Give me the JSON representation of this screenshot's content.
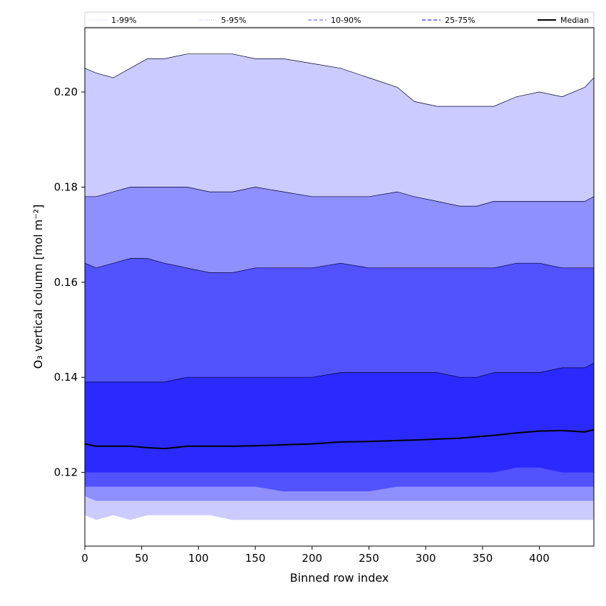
{
  "chart_data": {
    "type": "area",
    "xlabel": "Binned row index",
    "ylabel": "O₃ vertical column [mol m⁻²]",
    "xlim": [
      0,
      448
    ],
    "ylim": [
      0.1045,
      0.2135
    ],
    "x_ticks": [
      0,
      50,
      100,
      150,
      200,
      250,
      300,
      350,
      400
    ],
    "y_ticks": [
      0.12,
      0.14,
      0.16,
      0.18,
      0.2
    ],
    "x_tick_labels": [
      "0",
      "50",
      "100",
      "150",
      "200",
      "250",
      "300",
      "350",
      "400"
    ],
    "y_tick_labels": [
      "0.12",
      "0.14",
      "0.16",
      "0.18",
      "0.20"
    ],
    "grid": false,
    "legend_position": "top",
    "x": [
      0,
      10,
      25,
      40,
      55,
      70,
      90,
      110,
      130,
      150,
      175,
      200,
      225,
      250,
      275,
      290,
      310,
      330,
      345,
      360,
      380,
      400,
      420,
      440,
      448
    ],
    "bands": [
      {
        "name": "1-99%",
        "color": "#cbcbff",
        "lower": [
          0.111,
          0.11,
          0.111,
          0.11,
          0.111,
          0.111,
          0.111,
          0.111,
          0.11,
          0.11,
          0.11,
          0.11,
          0.11,
          0.11,
          0.11,
          0.11,
          0.11,
          0.11,
          0.11,
          0.11,
          0.11,
          0.11,
          0.11,
          0.11,
          0.11
        ],
        "upper": [
          0.205,
          0.204,
          0.203,
          0.205,
          0.207,
          0.207,
          0.208,
          0.208,
          0.208,
          0.207,
          0.207,
          0.206,
          0.205,
          0.203,
          0.201,
          0.198,
          0.197,
          0.197,
          0.197,
          0.197,
          0.199,
          0.2,
          0.199,
          0.201,
          0.203
        ]
      },
      {
        "name": "5-95%",
        "color": "#8f8fff",
        "lower": [
          0.115,
          0.114,
          0.114,
          0.114,
          0.114,
          0.114,
          0.114,
          0.114,
          0.114,
          0.114,
          0.114,
          0.114,
          0.114,
          0.114,
          0.114,
          0.114,
          0.114,
          0.114,
          0.114,
          0.114,
          0.114,
          0.114,
          0.114,
          0.114,
          0.114
        ],
        "upper": [
          0.178,
          0.178,
          0.179,
          0.18,
          0.18,
          0.18,
          0.18,
          0.179,
          0.179,
          0.18,
          0.179,
          0.178,
          0.178,
          0.178,
          0.179,
          0.178,
          0.177,
          0.176,
          0.176,
          0.177,
          0.177,
          0.177,
          0.177,
          0.177,
          0.178
        ]
      },
      {
        "name": "10-90%",
        "color": "#5252ff",
        "lower": [
          0.117,
          0.117,
          0.117,
          0.117,
          0.117,
          0.117,
          0.117,
          0.117,
          0.117,
          0.117,
          0.116,
          0.116,
          0.116,
          0.116,
          0.117,
          0.117,
          0.117,
          0.117,
          0.117,
          0.117,
          0.117,
          0.117,
          0.117,
          0.117,
          0.117
        ],
        "upper": [
          0.164,
          0.163,
          0.164,
          0.165,
          0.165,
          0.164,
          0.163,
          0.162,
          0.162,
          0.163,
          0.163,
          0.163,
          0.164,
          0.163,
          0.163,
          0.163,
          0.163,
          0.163,
          0.163,
          0.163,
          0.164,
          0.164,
          0.163,
          0.163,
          0.163
        ]
      },
      {
        "name": "25-75%",
        "color": "#2a2aff",
        "lower": [
          0.12,
          0.12,
          0.12,
          0.12,
          0.12,
          0.12,
          0.12,
          0.12,
          0.12,
          0.12,
          0.12,
          0.12,
          0.12,
          0.12,
          0.12,
          0.12,
          0.12,
          0.12,
          0.12,
          0.12,
          0.121,
          0.121,
          0.12,
          0.12,
          0.12
        ],
        "upper": [
          0.139,
          0.139,
          0.139,
          0.139,
          0.139,
          0.139,
          0.14,
          0.14,
          0.14,
          0.14,
          0.14,
          0.14,
          0.141,
          0.141,
          0.141,
          0.141,
          0.141,
          0.14,
          0.14,
          0.141,
          0.141,
          0.141,
          0.142,
          0.142,
          0.143
        ]
      }
    ],
    "series": [
      {
        "name": "Median",
        "color": "#000000",
        "values": [
          0.126,
          0.1255,
          0.1255,
          0.1255,
          0.1252,
          0.125,
          0.1255,
          0.1255,
          0.1255,
          0.1256,
          0.1258,
          0.126,
          0.1264,
          0.1265,
          0.1267,
          0.1268,
          0.127,
          0.1272,
          0.1275,
          0.1278,
          0.1283,
          0.1287,
          0.1288,
          0.1285,
          0.129
        ]
      }
    ],
    "legend": [
      {
        "label": "1-99%",
        "style": "solid",
        "color": "#cbcbff",
        "width": 0.6
      },
      {
        "label": "5-95%",
        "style": "dotted",
        "color": "#8f8fff",
        "width": 0.8
      },
      {
        "label": "10-90%",
        "style": "dashed",
        "color": "#5252ff",
        "width": 1.0
      },
      {
        "label": "25-75%",
        "style": "dashed",
        "color": "#2a2aff",
        "width": 1.2
      },
      {
        "label": "Median",
        "style": "solid",
        "color": "#000000",
        "width": 2.0
      }
    ]
  }
}
